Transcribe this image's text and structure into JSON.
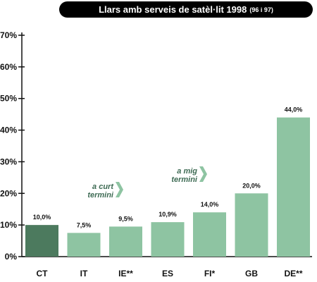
{
  "chart_data": {
    "type": "bar",
    "title": "Llars amb serveis de satèl·lit 1998",
    "subtitle": "(96 i 97)",
    "categories": [
      "CT",
      "IT",
      "IE**",
      "ES",
      "FI*",
      "GB",
      "DE**"
    ],
    "values": [
      10.0,
      7.5,
      9.5,
      10.9,
      14.0,
      20.0,
      44.0
    ],
    "value_labels": [
      "10,0%",
      "7,5%",
      "9,5%",
      "10,9%",
      "14,0%",
      "20,0%",
      "44,0%"
    ],
    "y_ticks": [
      0,
      10,
      20,
      30,
      40,
      50,
      60,
      70
    ],
    "y_tick_labels": [
      "0%",
      "10%",
      "20%",
      "30%",
      "40%",
      "50%",
      "60%",
      "70%"
    ],
    "ylim": [
      0,
      70
    ],
    "grid": false,
    "colors": {
      "bar": "#8ec4a2",
      "highlight_bar": "#4c7a5e",
      "axis": "#111111",
      "annotation": "#8ec4a2"
    },
    "highlight_index": 0,
    "annotations": [
      {
        "lines": [
          "a curt",
          "termini"
        ],
        "before_index": 2
      },
      {
        "lines": [
          "a mig",
          "termini"
        ],
        "before_index": 4
      }
    ]
  }
}
